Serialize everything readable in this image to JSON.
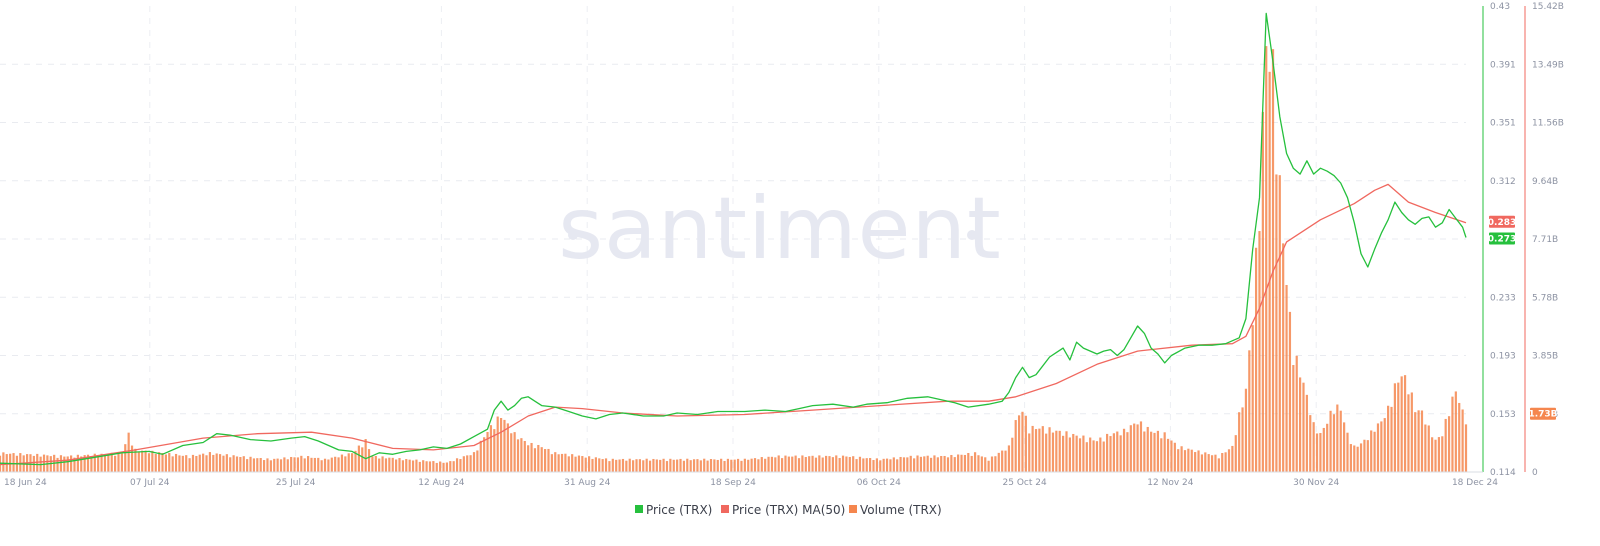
{
  "chart_data": {
    "type": "line",
    "watermark": "santiment",
    "x_ticks": [
      "18 Jun 24",
      "07 Jul 24",
      "25 Jul 24",
      "12 Aug 24",
      "31 Aug 24",
      "18 Sep 24",
      "06 Oct 24",
      "25 Oct 24",
      "12 Nov 24",
      "30 Nov 24",
      "18 Dec 24"
    ],
    "price_axis": {
      "ticks": [
        "0.43",
        "0.391",
        "0.351",
        "0.312",
        "0.273",
        "0.233",
        "0.193",
        "0.153",
        "0.114"
      ],
      "range": [
        0.114,
        0.43
      ],
      "color": "#26c03d"
    },
    "volume_axis": {
      "ticks": [
        "15.42B",
        "13.49B",
        "11.56B",
        "9.64B",
        "7.71B",
        "5.78B",
        "3.85B",
        "1.93B",
        "0"
      ],
      "range": [
        0,
        15.42
      ],
      "color": "#f0685f"
    },
    "series": [
      {
        "name": "Price (TRX)",
        "color": "#26c03d",
        "points": [
          [
            0,
            0.12
          ],
          [
            6,
            0.119
          ],
          [
            10,
            0.121
          ],
          [
            14,
            0.124
          ],
          [
            18,
            0.127
          ],
          [
            22,
            0.128
          ],
          [
            24,
            0.126
          ],
          [
            27,
            0.132
          ],
          [
            30,
            0.134
          ],
          [
            32,
            0.14
          ],
          [
            34,
            0.139
          ],
          [
            37,
            0.136
          ],
          [
            40,
            0.135
          ],
          [
            43,
            0.137
          ],
          [
            45,
            0.138
          ],
          [
            47,
            0.135
          ],
          [
            50,
            0.129
          ],
          [
            52,
            0.128
          ],
          [
            54,
            0.123
          ],
          [
            56,
            0.127
          ],
          [
            58,
            0.126
          ],
          [
            60,
            0.128
          ],
          [
            62,
            0.129
          ],
          [
            64,
            0.131
          ],
          [
            66,
            0.13
          ],
          [
            68,
            0.133
          ],
          [
            70,
            0.138
          ],
          [
            72,
            0.143
          ],
          [
            73,
            0.156
          ],
          [
            74,
            0.162
          ],
          [
            75,
            0.156
          ],
          [
            76,
            0.159
          ],
          [
            77,
            0.164
          ],
          [
            78,
            0.165
          ],
          [
            79,
            0.162
          ],
          [
            80,
            0.159
          ],
          [
            82,
            0.158
          ],
          [
            84,
            0.155
          ],
          [
            86,
            0.152
          ],
          [
            88,
            0.15
          ],
          [
            90,
            0.153
          ],
          [
            92,
            0.154
          ],
          [
            95,
            0.152
          ],
          [
            98,
            0.152
          ],
          [
            100,
            0.154
          ],
          [
            103,
            0.153
          ],
          [
            106,
            0.155
          ],
          [
            110,
            0.155
          ],
          [
            113,
            0.156
          ],
          [
            116,
            0.155
          ],
          [
            118,
            0.157
          ],
          [
            120,
            0.159
          ],
          [
            123,
            0.16
          ],
          [
            126,
            0.158
          ],
          [
            128,
            0.16
          ],
          [
            131,
            0.161
          ],
          [
            134,
            0.164
          ],
          [
            137,
            0.165
          ],
          [
            139,
            0.163
          ],
          [
            141,
            0.161
          ],
          [
            143,
            0.158
          ],
          [
            146,
            0.16
          ],
          [
            148,
            0.162
          ],
          [
            149,
            0.168
          ],
          [
            150,
            0.178
          ],
          [
            151,
            0.185
          ],
          [
            152,
            0.178
          ],
          [
            153,
            0.18
          ],
          [
            155,
            0.192
          ],
          [
            156,
            0.195
          ],
          [
            157,
            0.198
          ],
          [
            158,
            0.19
          ],
          [
            159,
            0.202
          ],
          [
            160,
            0.198
          ],
          [
            162,
            0.194
          ],
          [
            163,
            0.196
          ],
          [
            164,
            0.197
          ],
          [
            165,
            0.193
          ],
          [
            166,
            0.197
          ],
          [
            167,
            0.205
          ],
          [
            168,
            0.213
          ],
          [
            169,
            0.208
          ],
          [
            170,
            0.198
          ],
          [
            171,
            0.194
          ],
          [
            172,
            0.188
          ],
          [
            173,
            0.193
          ],
          [
            175,
            0.198
          ],
          [
            177,
            0.2
          ],
          [
            179,
            0.2
          ],
          [
            181,
            0.201
          ],
          [
            183,
            0.205
          ],
          [
            184,
            0.218
          ],
          [
            185,
            0.265
          ],
          [
            186,
            0.3
          ],
          [
            187,
            0.425
          ],
          [
            188,
            0.392
          ],
          [
            189,
            0.355
          ],
          [
            190,
            0.33
          ],
          [
            191,
            0.32
          ],
          [
            192,
            0.316
          ],
          [
            193,
            0.325
          ],
          [
            194,
            0.316
          ],
          [
            195,
            0.32
          ],
          [
            196,
            0.318
          ],
          [
            197,
            0.315
          ],
          [
            198,
            0.31
          ],
          [
            199,
            0.3
          ],
          [
            200,
            0.283
          ],
          [
            201,
            0.262
          ],
          [
            202,
            0.253
          ],
          [
            203,
            0.265
          ],
          [
            204,
            0.276
          ],
          [
            205,
            0.285
          ],
          [
            206,
            0.297
          ],
          [
            207,
            0.29
          ],
          [
            208,
            0.285
          ],
          [
            209,
            0.282
          ],
          [
            210,
            0.286
          ],
          [
            211,
            0.287
          ],
          [
            212,
            0.28
          ],
          [
            213,
            0.283
          ],
          [
            214,
            0.292
          ],
          [
            215,
            0.286
          ],
          [
            216,
            0.28
          ],
          [
            216.5,
            0.273
          ]
        ]
      },
      {
        "name": "Price (TRX) MA(50)",
        "color": "#f0685f",
        "points": [
          [
            0,
            0.119
          ],
          [
            10,
            0.122
          ],
          [
            20,
            0.129
          ],
          [
            30,
            0.137
          ],
          [
            38,
            0.14
          ],
          [
            46,
            0.141
          ],
          [
            52,
            0.137
          ],
          [
            58,
            0.13
          ],
          [
            64,
            0.129
          ],
          [
            70,
            0.132
          ],
          [
            74,
            0.141
          ],
          [
            78,
            0.152
          ],
          [
            82,
            0.158
          ],
          [
            86,
            0.157
          ],
          [
            92,
            0.154
          ],
          [
            100,
            0.152
          ],
          [
            110,
            0.153
          ],
          [
            120,
            0.156
          ],
          [
            130,
            0.159
          ],
          [
            140,
            0.162
          ],
          [
            146,
            0.162
          ],
          [
            150,
            0.165
          ],
          [
            156,
            0.174
          ],
          [
            162,
            0.187
          ],
          [
            168,
            0.196
          ],
          [
            176,
            0.2
          ],
          [
            182,
            0.201
          ],
          [
            184,
            0.206
          ],
          [
            186,
            0.225
          ],
          [
            188,
            0.25
          ],
          [
            190,
            0.27
          ],
          [
            195,
            0.285
          ],
          [
            200,
            0.296
          ],
          [
            203,
            0.305
          ],
          [
            205,
            0.309
          ],
          [
            208,
            0.297
          ],
          [
            212,
            0.29
          ],
          [
            216.5,
            0.283
          ]
        ]
      },
      {
        "name": "Volume (TRX)",
        "color": "#f5864e",
        "points": [
          [
            0,
            0.6
          ],
          [
            10,
            0.5
          ],
          [
            18,
            0.6
          ],
          [
            19,
            1.2
          ],
          [
            20,
            0.7
          ],
          [
            28,
            0.5
          ],
          [
            31,
            0.6
          ],
          [
            35,
            0.5
          ],
          [
            40,
            0.4
          ],
          [
            45,
            0.5
          ],
          [
            48,
            0.4
          ],
          [
            52,
            0.6
          ],
          [
            54,
            1.0
          ],
          [
            55,
            0.5
          ],
          [
            60,
            0.4
          ],
          [
            66,
            0.3
          ],
          [
            70,
            0.6
          ],
          [
            72,
            1.3
          ],
          [
            74,
            1.8
          ],
          [
            75,
            1.5
          ],
          [
            76,
            1.2
          ],
          [
            78,
            0.9
          ],
          [
            80,
            0.8
          ],
          [
            82,
            0.6
          ],
          [
            86,
            0.5
          ],
          [
            90,
            0.4
          ],
          [
            95,
            0.4
          ],
          [
            100,
            0.4
          ],
          [
            105,
            0.4
          ],
          [
            110,
            0.4
          ],
          [
            115,
            0.5
          ],
          [
            120,
            0.5
          ],
          [
            125,
            0.5
          ],
          [
            130,
            0.4
          ],
          [
            135,
            0.5
          ],
          [
            140,
            0.5
          ],
          [
            144,
            0.6
          ],
          [
            146,
            0.4
          ],
          [
            149,
            0.8
          ],
          [
            150,
            1.6
          ],
          [
            151,
            2.0
          ],
          [
            152,
            1.4
          ],
          [
            154,
            1.4
          ],
          [
            156,
            1.3
          ],
          [
            158,
            1.2
          ],
          [
            160,
            1.1
          ],
          [
            162,
            1.0
          ],
          [
            164,
            1.2
          ],
          [
            166,
            1.3
          ],
          [
            168,
            1.6
          ],
          [
            170,
            1.3
          ],
          [
            172,
            1.2
          ],
          [
            174,
            0.8
          ],
          [
            176,
            0.7
          ],
          [
            178,
            0.6
          ],
          [
            180,
            0.5
          ],
          [
            182,
            0.8
          ],
          [
            183,
            1.8
          ],
          [
            184,
            2.6
          ],
          [
            185,
            5.0
          ],
          [
            186,
            8.5
          ],
          [
            187,
            13.6
          ],
          [
            188,
            12.8
          ],
          [
            189,
            9.0
          ],
          [
            190,
            6.0
          ],
          [
            191,
            3.8
          ],
          [
            192,
            3.2
          ],
          [
            193,
            2.4
          ],
          [
            194,
            1.5
          ],
          [
            195,
            1.2
          ],
          [
            196,
            1.6
          ],
          [
            197,
            2.1
          ],
          [
            198,
            2.0
          ],
          [
            199,
            1.2
          ],
          [
            200,
            0.8
          ],
          [
            201,
            0.9
          ],
          [
            202,
            1.1
          ],
          [
            203,
            1.4
          ],
          [
            204,
            1.6
          ],
          [
            205,
            2.0
          ],
          [
            206,
            2.7
          ],
          [
            207,
            3.1
          ],
          [
            208,
            2.8
          ],
          [
            209,
            2.0
          ],
          [
            210,
            1.9
          ],
          [
            211,
            1.4
          ],
          [
            212,
            1.0
          ],
          [
            213,
            1.2
          ],
          [
            214,
            2.0
          ],
          [
            215,
            2.6
          ],
          [
            216,
            1.9
          ],
          [
            216.5,
            1.73
          ]
        ]
      }
    ],
    "badges": {
      "ma": {
        "label": "0.283",
        "value": 0.283,
        "color": "#f0685f"
      },
      "price": {
        "label": "0.273",
        "value": 0.273,
        "color": "#26c03d"
      },
      "volume": {
        "label": "1.73B",
        "value": 1.73,
        "color": "#f5864e"
      }
    },
    "legend": [
      {
        "label": "Price (TRX)",
        "color": "#26c03d"
      },
      {
        "label": "Price (TRX) MA(50)",
        "color": "#f0685f"
      },
      {
        "label": "Volume (TRX)",
        "color": "#f5864e"
      }
    ],
    "grid": true,
    "legend_position": "bottom-center"
  }
}
